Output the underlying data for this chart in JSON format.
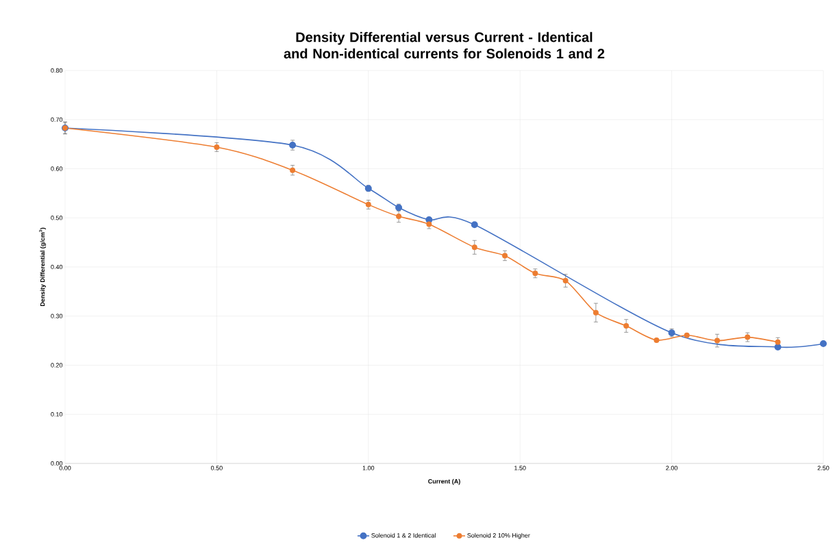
{
  "chart_data": {
    "type": "line",
    "title": "Density Differential versus Current - Identical and Non-identical currents for Solenoids 1 and 2",
    "xlabel": "Current (A)",
    "ylabel": "Density Differential (g/cm$^{3}$)",
    "xlim": [
      0,
      2.5
    ],
    "xticks": [
      {
        "value": 0,
        "label": "0.00"
      },
      {
        "value": 0.5,
        "label": "0.50"
      },
      {
        "value": 1,
        "label": "1.00"
      },
      {
        "value": 1.5,
        "label": "1.50"
      },
      {
        "value": 2,
        "label": "2.00"
      },
      {
        "value": 2.5,
        "label": "2.50"
      }
    ],
    "ylim": [
      0,
      0.8
    ],
    "yticks": [
      {
        "value": 0,
        "label": "0.00"
      },
      {
        "value": 0.1,
        "label": "0.10"
      },
      {
        "value": 0.2,
        "label": "0.20"
      },
      {
        "value": 0.3,
        "label": "0.30"
      },
      {
        "value": 0.4,
        "label": "0.40"
      },
      {
        "value": 0.5,
        "label": "0.50"
      },
      {
        "value": 0.6,
        "label": "0.60"
      },
      {
        "value": 0.7,
        "label": "0.70"
      },
      {
        "value": 0.8,
        "label": "0.80"
      }
    ],
    "grid": true,
    "legend": "bottom",
    "marker": "circle",
    "line_style": "solid",
    "series": [
      {
        "name": "Solenoid 1 & 2 Identical",
        "color": "#4472c4",
        "x": [
          0,
          0.75,
          1.0,
          1.1,
          1.2,
          1.35,
          2.0,
          2.35,
          2.5
        ],
        "values": [
          0.683,
          0.648,
          0.56,
          0.521,
          0.496,
          0.486,
          0.266,
          0.237,
          0.244
        ],
        "errors": [
          0.012,
          0.01,
          0.006,
          0.007,
          null,
          null,
          0.008,
          null,
          null
        ]
      },
      {
        "name": "Solenoid 2 10% Higher",
        "color": "#ed7d31",
        "x": [
          0,
          0.5,
          0.75,
          1.0,
          1.1,
          1.2,
          1.35,
          1.45,
          1.55,
          1.65,
          1.75,
          1.85,
          1.95,
          2.05,
          2.15,
          2.25,
          2.35
        ],
        "values": [
          0.683,
          0.644,
          0.597,
          0.527,
          0.503,
          0.487,
          0.44,
          0.423,
          0.387,
          0.372,
          0.307,
          0.28,
          0.251,
          0.261,
          0.25,
          0.257,
          0.247
        ],
        "errors": [
          0.012,
          0.009,
          0.01,
          0.009,
          0.012,
          0.009,
          0.014,
          0.01,
          0.009,
          0.013,
          0.019,
          0.013,
          null,
          null,
          0.013,
          0.009,
          0.009
        ]
      }
    ]
  }
}
